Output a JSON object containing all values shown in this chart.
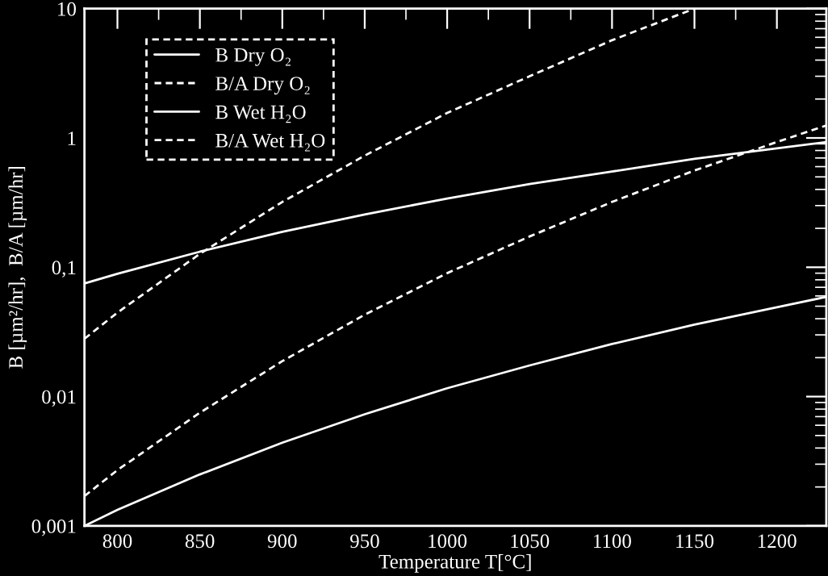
{
  "chart_data": {
    "type": "line",
    "xlabel": "Temperature T[°C]",
    "ylabel": "B [µm²/hr],  B/A [µm/hr]",
    "xlim": [
      780,
      1230
    ],
    "xticks": [
      800,
      850,
      900,
      950,
      1000,
      1050,
      1100,
      1150,
      1200
    ],
    "ylim": [
      0.001,
      10
    ],
    "yticks": [
      {
        "value": 0.001,
        "label": "0,001"
      },
      {
        "value": 0.01,
        "label": "0,01"
      },
      {
        "value": 0.1,
        "label": "0,1"
      },
      1,
      10
    ],
    "log": "y",
    "grid": false,
    "legend": "top left",
    "marker": "none",
    "series": [
      {
        "name": "B Dry O₂",
        "color": "#ffffff",
        "line_style": "solid",
        "x": [
          780,
          800,
          850,
          900,
          950,
          1000,
          1050,
          1100,
          1150,
          1200,
          1230
        ],
        "values": [
          0.001,
          0.00133,
          0.0025,
          0.0044,
          0.0073,
          0.0116,
          0.0174,
          0.0255,
          0.036,
          0.049,
          0.059
        ]
      },
      {
        "name": "B/A Dry O₂",
        "color": "#ffffff",
        "line_style": "dashed",
        "x": [
          780,
          800,
          850,
          900,
          950,
          1000,
          1050,
          1100,
          1150,
          1200,
          1230
        ],
        "values": [
          0.0017,
          0.0027,
          0.0075,
          0.0188,
          0.043,
          0.09,
          0.173,
          0.32,
          0.56,
          0.93,
          1.25
        ]
      },
      {
        "name": "B Wet H₂O",
        "color": "#ffffff",
        "line_style": "solid",
        "x": [
          780,
          800,
          850,
          900,
          950,
          1000,
          1050,
          1100,
          1150,
          1200,
          1230
        ],
        "values": [
          0.075,
          0.089,
          0.132,
          0.188,
          0.256,
          0.34,
          0.44,
          0.55,
          0.69,
          0.83,
          0.93
        ]
      },
      {
        "name": "B/A Wet H₂O",
        "color": "#ffffff",
        "line_style": "dashed",
        "x": [
          780,
          800,
          850,
          900,
          950,
          1000,
          1050,
          1100,
          1150
        ],
        "values": [
          0.028,
          0.0446,
          0.127,
          0.32,
          0.73,
          1.56,
          3.0,
          5.7,
          10
        ]
      }
    ]
  }
}
